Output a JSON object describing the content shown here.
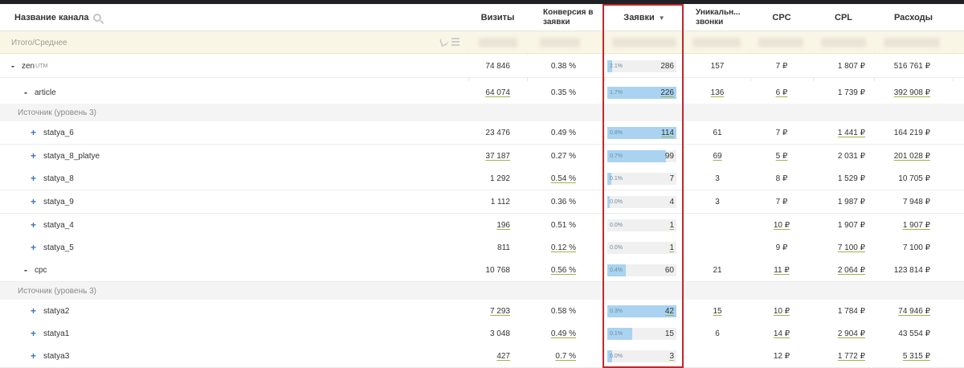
{
  "header": {
    "channel": "Название канала",
    "visits": "Визиты",
    "conversion": "Конверсия в заявки",
    "requests": "Заявки",
    "unique_calls": "Уникальн... звонки",
    "cpc": "CPC",
    "cpl": "CPL",
    "expenses": "Расходы"
  },
  "total_row": {
    "label": "Итого/Среднее"
  },
  "rows": [
    {
      "kind": "data",
      "toggle": "-",
      "name": "zen",
      "sup": "UTM",
      "visits": "74 846",
      "conversion": "0.38 %",
      "bar_pct": "2.1%",
      "fill": 0.07,
      "requests": "286",
      "calls": "157",
      "cpc": "7 ₽",
      "cpl": "1 807 ₽",
      "expenses": "516 761 ₽"
    },
    {
      "kind": "data",
      "toggle": "-",
      "name": "article",
      "visits": "64 074",
      "conversion": "0.35 %",
      "bar_pct": "1.7%",
      "fill": 1.0,
      "requests": "226",
      "calls": "136",
      "cpc": "6 ₽",
      "cpl": "1 739 ₽",
      "expenses": "392 908 ₽"
    },
    {
      "kind": "group",
      "label": "Источник (уровень 3)"
    },
    {
      "kind": "data",
      "toggle": "+",
      "name": "statya_6",
      "visits": "23 476",
      "conversion": "0.49 %",
      "bar_pct": "0.8%",
      "fill": 1.0,
      "requests": "114",
      "calls": "61",
      "cpc": "7 ₽",
      "cpl": "1 441 ₽",
      "expenses": "164 219 ₽"
    },
    {
      "kind": "data",
      "toggle": "+",
      "name": "statya_8_platye",
      "visits": "37 187",
      "conversion": "0.27 %",
      "bar_pct": "0.7%",
      "fill": 0.85,
      "requests": "99",
      "calls": "69",
      "cpc": "5 ₽",
      "cpl": "2 031 ₽",
      "expenses": "201 028 ₽"
    },
    {
      "kind": "data",
      "toggle": "+",
      "name": "statya_8",
      "visits": "1 292",
      "conversion": "0.54 %",
      "bar_pct": "0.1%",
      "fill": 0.06,
      "requests": "7",
      "calls": "3",
      "cpc": "8 ₽",
      "cpl": "1 529 ₽",
      "expenses": "10 705 ₽"
    },
    {
      "kind": "data",
      "toggle": "+",
      "name": "statya_9",
      "visits": "1 112",
      "conversion": "0.36 %",
      "bar_pct": "0.0%",
      "fill": 0.03,
      "requests": "4",
      "calls": "3",
      "cpc": "7 ₽",
      "cpl": "1 987 ₽",
      "expenses": "7 948 ₽"
    },
    {
      "kind": "data",
      "toggle": "+",
      "name": "statya_4",
      "visits": "196",
      "conversion": "0.51 %",
      "bar_pct": "0.0%",
      "fill": 0.0,
      "requests": "1",
      "calls": "",
      "cpc": "10 ₽",
      "cpl": "1 907 ₽",
      "expenses": "1 907 ₽"
    },
    {
      "kind": "data",
      "toggle": "+",
      "name": "statya_5",
      "visits": "811",
      "conversion": "0.12 %",
      "bar_pct": "0.0%",
      "fill": 0.0,
      "requests": "1",
      "calls": "",
      "cpc": "9 ₽",
      "cpl": "7 100 ₽",
      "expenses": "7 100 ₽"
    },
    {
      "kind": "data",
      "toggle": "-",
      "name": "cpc",
      "visits": "10 768",
      "conversion": "0.56 %",
      "bar_pct": "0.4%",
      "fill": 0.27,
      "requests": "60",
      "calls": "21",
      "cpc": "11 ₽",
      "cpl": "2 064 ₽",
      "expenses": "123 814 ₽"
    },
    {
      "kind": "group",
      "label": "Источник (уровень 3)"
    },
    {
      "kind": "data",
      "toggle": "+",
      "name": "statya2",
      "visits": "7 293",
      "conversion": "0.58 %",
      "bar_pct": "0.3%",
      "fill": 1.0,
      "requests": "42",
      "calls": "15",
      "cpc": "10 ₽",
      "cpl": "1 784 ₽",
      "expenses": "74 946 ₽"
    },
    {
      "kind": "data",
      "toggle": "+",
      "name": "statya1",
      "visits": "3 048",
      "conversion": "0.49 %",
      "bar_pct": "0.1%",
      "fill": 0.36,
      "requests": "15",
      "calls": "6",
      "cpc": "14 ₽",
      "cpl": "2 904 ₽",
      "expenses": "43 554 ₽"
    },
    {
      "kind": "data",
      "toggle": "+",
      "name": "statya3",
      "visits": "427",
      "conversion": "0.7 %",
      "bar_pct": "0.0%",
      "fill": 0.07,
      "requests": "3",
      "calls": "",
      "cpc": "12 ₽",
      "cpl": "1 772 ₽",
      "expenses": "5 315 ₽"
    }
  ],
  "colors": {
    "bar_fill": "#a9d3f0",
    "highlight": "#c3262c",
    "total_bg": "#faf6e6",
    "underline": "#9ab54a"
  }
}
